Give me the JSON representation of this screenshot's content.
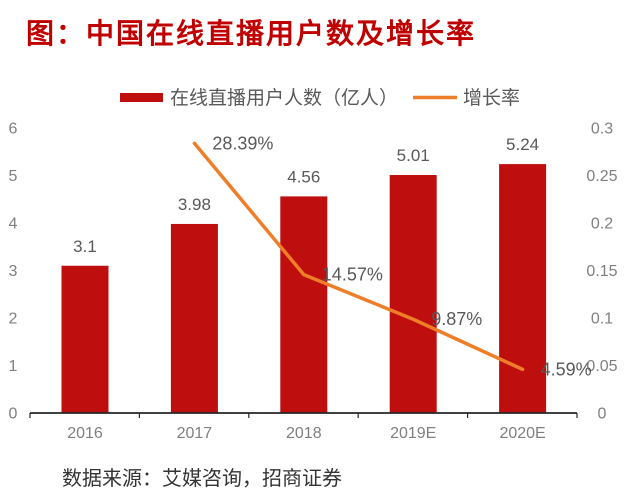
{
  "title": "图：中国在线直播用户数及增长率",
  "source_note": "数据来源：艾媒咨询，招商证券",
  "colors": {
    "title": "#C00000",
    "bar": "#BE0E0E",
    "line": "#EF7E28",
    "axis_line": "#262626",
    "tick_text": "#7F7F7F",
    "data_label_text": "#595959",
    "legend_text": "#595959",
    "source_text": "#333333"
  },
  "chart_data": {
    "type": "bar+line",
    "title": "中国在线直播用户数及增长率",
    "categories": [
      "2016",
      "2017",
      "2018",
      "2019E",
      "2020E"
    ],
    "series": [
      {
        "name": "在线直播用户人数（亿人）",
        "type": "bar",
        "axis": "left",
        "values": [
          3.1,
          3.98,
          4.56,
          5.01,
          5.24
        ],
        "point_labels": [
          "3.1",
          "3.98",
          "4.56",
          "5.01",
          "5.24"
        ]
      },
      {
        "name": "增长率",
        "type": "line",
        "axis": "right",
        "values": [
          null,
          0.2839,
          0.1457,
          0.0987,
          0.0459
        ],
        "point_labels": [
          null,
          "28.39%",
          "14.57%",
          "9.87%",
          "4.59%"
        ]
      }
    ],
    "left_axis": {
      "range": [
        0,
        6
      ],
      "ticks": [
        "0",
        "1",
        "2",
        "3",
        "4",
        "5",
        "6"
      ]
    },
    "right_axis": {
      "range": [
        0,
        0.3
      ],
      "ticks": [
        "0",
        "0.05",
        "0.1",
        "0.15",
        "0.2",
        "0.25",
        "0.3"
      ]
    },
    "legend": [
      {
        "label": "在线直播用户人数（亿人）",
        "marker": "bar-swatch"
      },
      {
        "label": "增长率",
        "marker": "line-swatch"
      }
    ],
    "legend_position": "top",
    "grid": false
  }
}
